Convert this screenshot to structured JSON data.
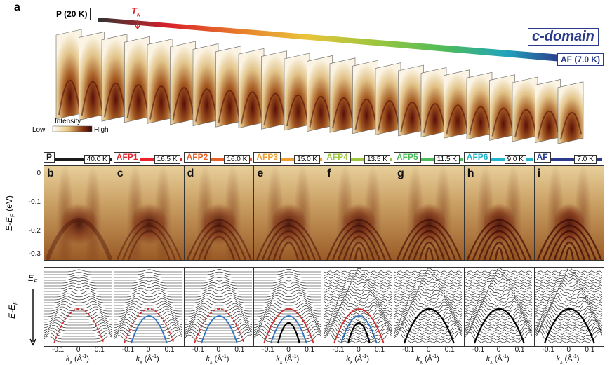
{
  "panel_a": {
    "letter": "a",
    "start_label": "P (20 K)",
    "end_label": "AF (7.0 K)",
    "tn_label": "T",
    "tn_sub": "N",
    "domain_label": "c-domain",
    "intensity": {
      "title": "Intensity",
      "low": "Low",
      "high": "High"
    }
  },
  "phases": [
    {
      "tag": "P",
      "temp": "40.0 K",
      "color": "#1a1a1a",
      "letter": "b"
    },
    {
      "tag": "AFP1",
      "temp": "16.5 K",
      "color": "#e8232a",
      "letter": "c"
    },
    {
      "tag": "AFP2",
      "temp": "16.0 K",
      "color": "#e8602a",
      "letter": "d"
    },
    {
      "tag": "AFP3",
      "temp": "15.0 K",
      "color": "#f0a030",
      "letter": "e"
    },
    {
      "tag": "AFP4",
      "temp": "13.5 K",
      "color": "#9bc63d",
      "letter": "f"
    },
    {
      "tag": "AFP5",
      "temp": "11.5 K",
      "color": "#4cbb5a",
      "letter": "g"
    },
    {
      "tag": "AFP6",
      "temp": "9.0 K",
      "color": "#22b4cc",
      "letter": "h"
    },
    {
      "tag": "AF",
      "temp": "7.0 K",
      "color": "#2b3a8c",
      "letter": "i"
    }
  ],
  "axes": {
    "y_title_top": "E-E",
    "y_title_top_sub": "F",
    "y_unit": "(eV)",
    "y_ticks": [
      "0",
      "-0.1",
      "-0.2",
      "-0.3"
    ],
    "y_title_bottom": "E-E",
    "y_title_bottom_sub": "F",
    "ef_label": "E",
    "ef_sub": "F",
    "x_ticks": [
      "-0.1",
      "0",
      "0.1"
    ],
    "x_title": "k",
    "x_title_sub": "x",
    "x_unit": "(Å",
    "x_unit_sup": "-1",
    "x_unit_close": ")"
  }
}
